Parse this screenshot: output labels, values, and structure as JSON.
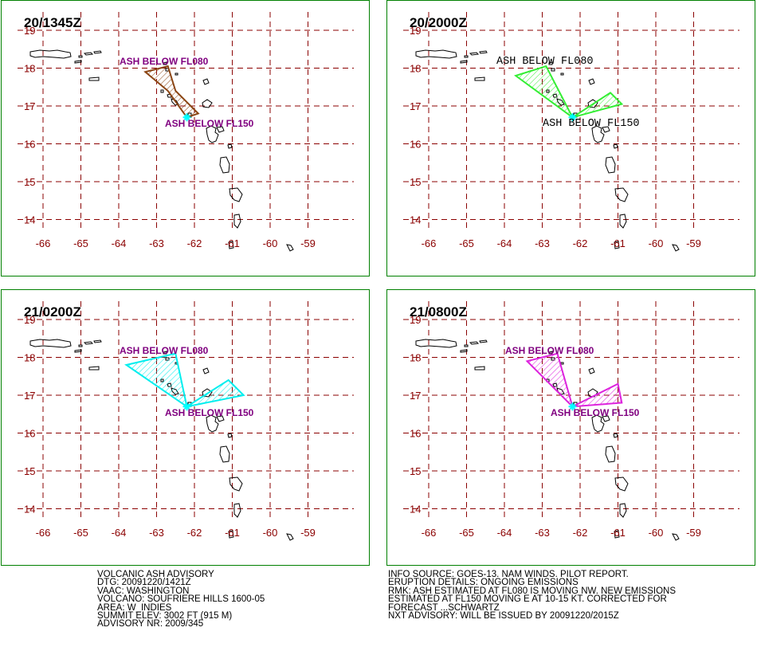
{
  "colors": {
    "border": "#008000",
    "grid": "#8b0000",
    "coast": "#000000",
    "label": "#800080",
    "vent": "#00ffff"
  },
  "axes": {
    "lon_ticks": [
      "-66",
      "-65",
      "-64",
      "-63",
      "-62",
      "-61",
      "-60",
      "-59"
    ],
    "lat_ticks": [
      "19",
      "18",
      "17",
      "16",
      "15",
      "14"
    ]
  },
  "panels": [
    {
      "time": "20/1345Z",
      "polygon_color": "#8b4513",
      "label_color": "#800080",
      "label_font": "sans",
      "layers": [
        {
          "label": "ASH BELOW FL080",
          "polygon": [
            [
              -62.2,
              16.7
            ],
            [
              -62.7,
              17.4
            ],
            [
              -63.3,
              17.9
            ],
            [
              -62.7,
              18.05
            ],
            [
              -62.5,
              17.4
            ],
            [
              -61.9,
              16.8
            ]
          ]
        },
        {
          "label": "ASH BELOW FL150",
          "polygon": []
        }
      ]
    },
    {
      "time": "20/2000Z",
      "polygon_color": "#33ee33",
      "label_color": "#000000",
      "label_font": "mono",
      "layers": [
        {
          "label": "ASH BELOW FL080",
          "polygon": [
            [
              -62.2,
              16.7
            ],
            [
              -63.7,
              17.8
            ],
            [
              -62.9,
              18.05
            ]
          ]
        },
        {
          "label": "ASH BELOW FL150",
          "polygon": [
            [
              -62.2,
              16.7
            ],
            [
              -61.2,
              17.35
            ],
            [
              -60.9,
              17.05
            ]
          ]
        }
      ]
    },
    {
      "time": "21/0200Z",
      "polygon_color": "#00eeee",
      "label_color": "#800080",
      "label_font": "sans",
      "layers": [
        {
          "label": "ASH BELOW FL080",
          "polygon": [
            [
              -62.2,
              16.7
            ],
            [
              -63.8,
              17.8
            ],
            [
              -62.5,
              18.1
            ]
          ]
        },
        {
          "label": "ASH BELOW FL150",
          "polygon": [
            [
              -62.2,
              16.7
            ],
            [
              -61.1,
              17.4
            ],
            [
              -60.7,
              17.0
            ]
          ]
        }
      ]
    },
    {
      "time": "21/0800Z",
      "polygon_color": "#dd22dd",
      "label_color": "#800080",
      "label_font": "sans",
      "layers": [
        {
          "label": "ASH BELOW FL080",
          "polygon": [
            [
              -62.2,
              16.7
            ],
            [
              -63.4,
              17.9
            ],
            [
              -62.6,
              18.1
            ]
          ]
        },
        {
          "label": "ASH BELOW FL150",
          "polygon": [
            [
              -62.2,
              16.7
            ],
            [
              -61.0,
              17.3
            ],
            [
              -60.9,
              16.8
            ]
          ]
        }
      ]
    }
  ],
  "advisory_left": [
    "VOLCANIC ASH ADVISORY",
    "DTG: 20091220/1421Z",
    "VAAC: WASHINGTON",
    "VOLCANO: SOUFRIERE HILLS 1600-05",
    "AREA: W_INDIES",
    "SUMMIT ELEV: 3002 FT (915 M)",
    "ADVISORY NR: 2009/345"
  ],
  "advisory_right": [
    "INFO SOURCE: GOES-13. NAM WINDS. PILOT REPORT.",
    "ERUPTION DETAILS: ONGOING EMISSIONS",
    "RMK: ASH ESTIMATED AT FL080 IS MOVING NW. NEW EMISSIONS",
    "ESTIMATED AT FL150 MOVING E AT 10-15 KT. CORRECTED FOR",
    "FORECAST ...SCHWARTZ",
    "NXT ADVISORY: WILL BE ISSUED BY 20091220/2015Z"
  ]
}
